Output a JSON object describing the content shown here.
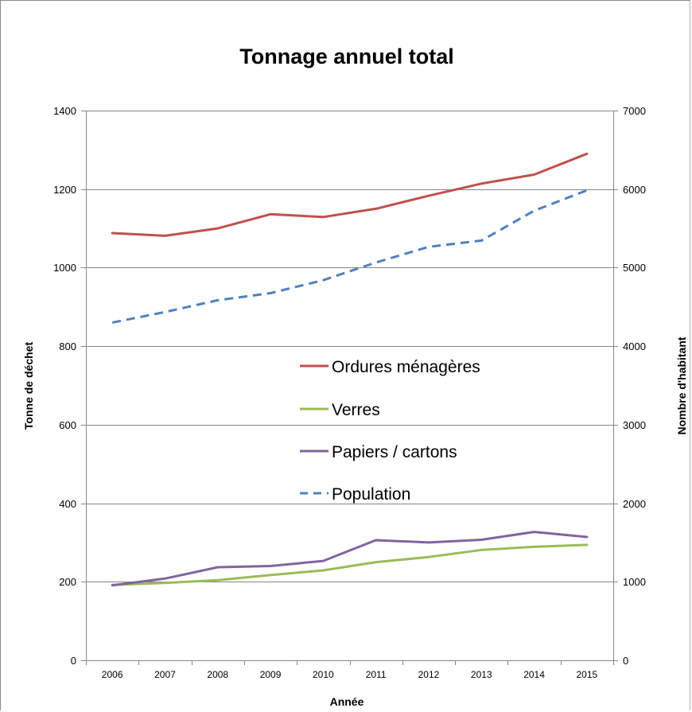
{
  "chart_data": {
    "type": "line",
    "title": "Tonnage annuel total",
    "xlabel": "Année",
    "ylabel": "Tonne de déchet",
    "y2label": "Nombre d'habitant",
    "categories": [
      "2006",
      "2007",
      "2008",
      "2009",
      "2010",
      "2011",
      "2012",
      "2013",
      "2014",
      "2015"
    ],
    "ylim": [
      0,
      1400
    ],
    "y_ticks": [
      0,
      200,
      400,
      600,
      800,
      1000,
      1200,
      1400
    ],
    "y2lim": [
      0,
      7000
    ],
    "y2_ticks": [
      0,
      1000,
      2000,
      3000,
      4000,
      5000,
      6000,
      7000
    ],
    "grid": true,
    "legend_position": "center",
    "series": [
      {
        "name": "Ordures ménagères",
        "axis": "left",
        "color": "#c0504d",
        "dash": "solid",
        "values": [
          1088,
          1081,
          1100,
          1136,
          1129,
          1150,
          1183,
          1214,
          1237,
          1290
        ]
      },
      {
        "name": "Verres",
        "axis": "left",
        "color": "#9bbb59",
        "dash": "solid",
        "values": [
          192,
          197,
          204,
          217,
          229,
          250,
          263,
          281,
          289,
          294
        ]
      },
      {
        "name": "Papiers / cartons",
        "axis": "left",
        "color": "#8064a2",
        "dash": "solid",
        "values": [
          191,
          208,
          237,
          240,
          253,
          306,
          300,
          307,
          327,
          314
        ]
      },
      {
        "name": "Population",
        "axis": "right",
        "color": "#4f81bd",
        "dash": "dashed",
        "values": [
          4300,
          4435,
          4585,
          4675,
          4840,
          5065,
          5265,
          5345,
          5725,
          5985
        ]
      }
    ]
  }
}
